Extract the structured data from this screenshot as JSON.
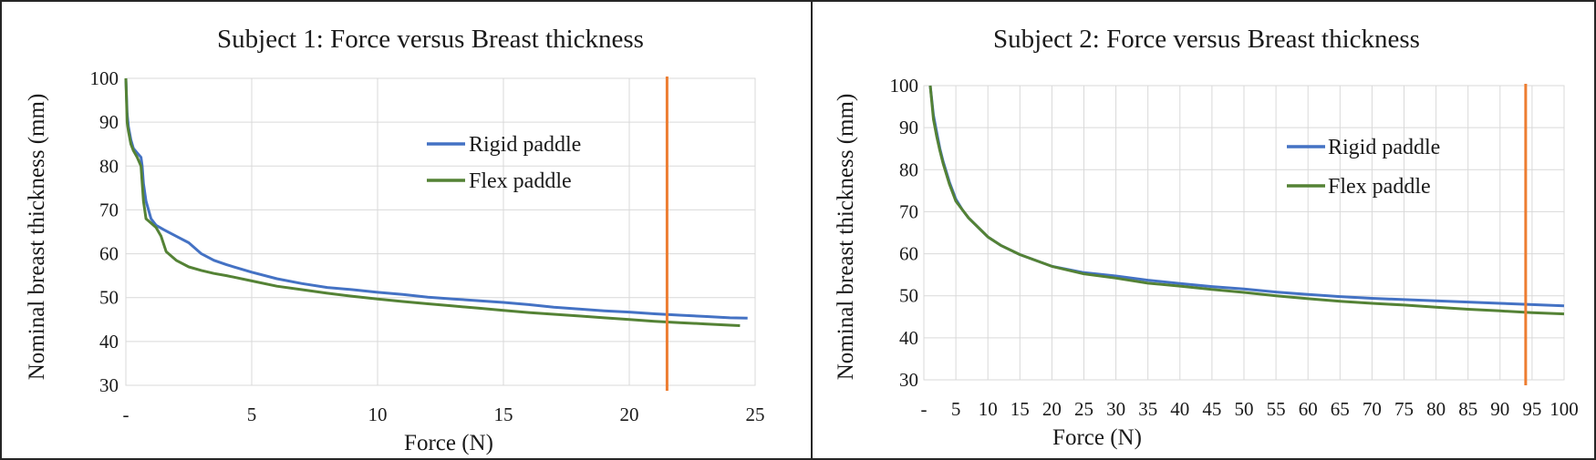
{
  "chart_data": [
    {
      "type": "line",
      "title": "Subject 1: Force versus Breast thickness",
      "xlabel": "Force (N)",
      "ylabel": "Nominal breast thickness (mm)",
      "xlim": [
        0,
        25
      ],
      "ylim": [
        30,
        100
      ],
      "x_ticks": [
        0,
        5,
        10,
        15,
        20,
        25
      ],
      "x_tick_labels": [
        "-",
        "5",
        "10",
        "15",
        "20",
        "25"
      ],
      "y_ticks": [
        30,
        40,
        50,
        60,
        70,
        80,
        90,
        100
      ],
      "y_tick_labels": [
        "30",
        "40",
        "50",
        "60",
        "70",
        "80",
        "90",
        "100"
      ],
      "grid": true,
      "legend_position": "upper-right",
      "series": [
        {
          "name": "Rigid paddle",
          "color": "#4472c4",
          "x": [
            0,
            0.05,
            0.1,
            0.2,
            0.3,
            0.45,
            0.6,
            0.65,
            0.7,
            0.8,
            1.0,
            1.2,
            1.5,
            2.0,
            2.5,
            3.0,
            3.5,
            4.0,
            5.0,
            6.0,
            7.0,
            8.0,
            9.0,
            10.0,
            11.0,
            12.0,
            13.0,
            14.0,
            15.0,
            16.0,
            17.0,
            18.0,
            19.0,
            20.0,
            21.0,
            22.0,
            23.0,
            24.0,
            24.7
          ],
          "y": [
            100,
            92,
            89,
            86,
            84,
            83,
            82,
            80,
            76,
            72,
            68,
            66.5,
            65.5,
            64,
            62.5,
            60,
            58.5,
            57.5,
            55.8,
            54.3,
            53.2,
            52.3,
            51.8,
            51.2,
            50.7,
            50.1,
            49.7,
            49.3,
            48.9,
            48.4,
            47.8,
            47.4,
            47.0,
            46.7,
            46.3,
            46.0,
            45.7,
            45.4,
            45.3
          ]
        },
        {
          "name": "Flex paddle",
          "color": "#548235",
          "x": [
            0,
            0.05,
            0.1,
            0.2,
            0.3,
            0.45,
            0.6,
            0.7,
            0.8,
            1.0,
            1.2,
            1.4,
            1.6,
            2.0,
            2.5,
            3.0,
            3.5,
            4.0,
            5.0,
            6.0,
            7.0,
            8.0,
            9.0,
            10.0,
            11.0,
            12.0,
            13.0,
            14.0,
            15.0,
            16.0,
            17.0,
            18.0,
            19.0,
            20.0,
            21.0,
            22.0,
            23.0,
            24.0,
            24.4
          ],
          "y": [
            100,
            90,
            88,
            85,
            83.5,
            82,
            80,
            72,
            68,
            67,
            66,
            64,
            60.5,
            58.5,
            57,
            56.2,
            55.5,
            55,
            53.8,
            52.6,
            51.8,
            51.0,
            50.3,
            49.7,
            49.1,
            48.6,
            48.1,
            47.6,
            47.1,
            46.6,
            46.2,
            45.8,
            45.4,
            45.0,
            44.6,
            44.3,
            44.0,
            43.7,
            43.6
          ]
        }
      ],
      "annotations": [
        {
          "type": "vertical_line",
          "x": 21.5,
          "color": "#ed7d31"
        }
      ]
    },
    {
      "type": "line",
      "title": "Subject 2: Force versus Breast thickness",
      "xlabel": "Force (N)",
      "ylabel": "Nominal breast thickness (mm)",
      "xlim": [
        0,
        100
      ],
      "ylim": [
        30,
        100
      ],
      "x_ticks": [
        0,
        5,
        10,
        15,
        20,
        25,
        30,
        35,
        40,
        45,
        50,
        55,
        60,
        65,
        70,
        75,
        80,
        85,
        90,
        95,
        100
      ],
      "x_tick_labels": [
        "-",
        "5",
        "10",
        "15",
        "20",
        "25",
        "30",
        "35",
        "40",
        "45",
        "50",
        "55",
        "60",
        "65",
        "70",
        "75",
        "80",
        "85",
        "90",
        "95",
        "100"
      ],
      "y_ticks": [
        30,
        40,
        50,
        60,
        70,
        80,
        90,
        100
      ],
      "y_tick_labels": [
        "30",
        "40",
        "50",
        "60",
        "70",
        "80",
        "90",
        "100"
      ],
      "grid": true,
      "legend_position": "upper-right",
      "series": [
        {
          "name": "Rigid paddle",
          "color": "#4472c4",
          "x": [
            1,
            1.5,
            2,
            2.5,
            3,
            4,
            5,
            6,
            7,
            8,
            10,
            12,
            15,
            20,
            25,
            30,
            35,
            40,
            45,
            50,
            55,
            60,
            65,
            70,
            75,
            80,
            85,
            90,
            95,
            100
          ],
          "y": [
            100,
            93,
            89,
            85,
            82,
            77,
            73,
            70.5,
            68.5,
            67,
            64,
            62,
            59.8,
            57,
            55.5,
            54.7,
            53.7,
            52.9,
            52.2,
            51.6,
            50.9,
            50.3,
            49.8,
            49.4,
            49.1,
            48.8,
            48.5,
            48.2,
            47.9,
            47.6
          ]
        },
        {
          "name": "Flex paddle",
          "color": "#548235",
          "x": [
            1,
            1.5,
            2,
            2.5,
            3,
            4,
            5,
            6,
            7,
            8,
            10,
            12,
            15,
            20,
            25,
            30,
            35,
            40,
            45,
            50,
            55,
            60,
            65,
            70,
            75,
            80,
            85,
            90,
            95,
            100
          ],
          "y": [
            100,
            92,
            88,
            84.5,
            81.5,
            76.5,
            72.5,
            70.5,
            68.5,
            67,
            64,
            62,
            59.8,
            57,
            55.2,
            54.2,
            53,
            52.3,
            51.5,
            50.8,
            50,
            49.3,
            48.7,
            48.2,
            47.8,
            47.3,
            46.8,
            46.4,
            46,
            45.7
          ]
        }
      ],
      "annotations": [
        {
          "type": "vertical_line",
          "x": 94,
          "color": "#ed7d31"
        }
      ]
    }
  ]
}
